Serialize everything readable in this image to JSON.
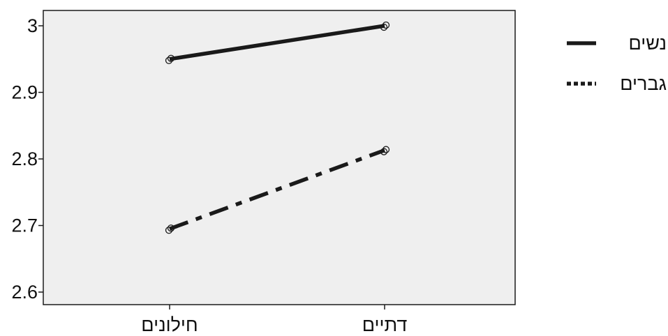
{
  "chart_data": {
    "type": "line",
    "categories": [
      "חילונים",
      "דתיים"
    ],
    "series": [
      {
        "name": "נשים",
        "values": [
          2.95,
          3.0
        ],
        "line_style": "solid",
        "color": "#1a1a1a"
      },
      {
        "name": "גברים",
        "values": [
          2.695,
          2.813
        ],
        "line_style": "dashdot",
        "color": "#1a1a1a"
      }
    ],
    "legend": {
      "placement": "right",
      "entries": [
        {
          "label": "נשים",
          "line_style": "solid"
        },
        {
          "label": "גברים",
          "line_style": "dotted"
        }
      ]
    },
    "ylim": [
      2.6,
      3.0
    ],
    "yticks": [
      {
        "value": 2.6,
        "label": "2.6"
      },
      {
        "value": 2.7,
        "label": "2.7"
      },
      {
        "value": 2.8,
        "label": "2.8"
      },
      {
        "value": 2.9,
        "label": "2.9"
      },
      {
        "value": 3.0,
        "label": "3"
      }
    ],
    "grid": false,
    "plot_background": "#efefef",
    "title": "",
    "xlabel": "",
    "ylabel": ""
  }
}
